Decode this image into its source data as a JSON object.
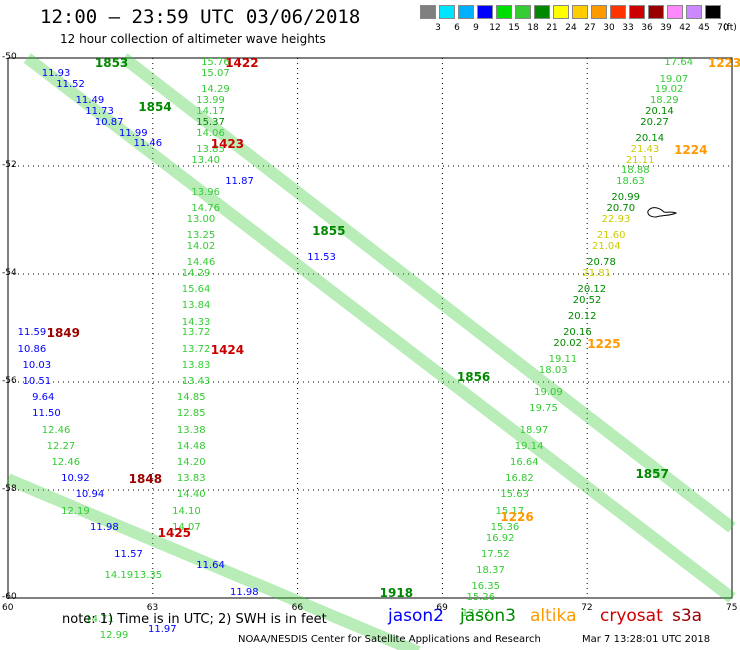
{
  "title": "12:00 – 23:59 UTC 03/06/2018",
  "subtitle": "12 hour collection of altimeter wave heights",
  "scale": {
    "labels": [
      "3",
      "6",
      "9",
      "12",
      "15",
      "18",
      "21",
      "24",
      "27",
      "30",
      "33",
      "36",
      "39",
      "42",
      "45",
      "70"
    ],
    "unit": "(ft)",
    "colors": [
      "#808080",
      "#00e5ff",
      "#00b0ff",
      "#0000ff",
      "#00dd00",
      "#33cc33",
      "#008800",
      "#ffff00",
      "#ffcc00",
      "#ff9900",
      "#ff3300",
      "#cc0000",
      "#990000",
      "#ff88ff",
      "#cc88ff",
      "#000000"
    ]
  },
  "axes": {
    "lat_labels": [
      "-50",
      "-52",
      "-54",
      "-56",
      "-58",
      "-60"
    ],
    "lon_labels": [
      "60",
      "63",
      "66",
      "69",
      "72",
      "75"
    ]
  },
  "note": "note: 1) Time is in UTC; 2) SWH is in feet",
  "legend": [
    {
      "name": "jason2",
      "color": "#0000ff"
    },
    {
      "name": "jason3",
      "color": "#008800"
    },
    {
      "name": "altika",
      "color": "#ff9900"
    },
    {
      "name": "cryosat",
      "color": "#cc0000"
    },
    {
      "name": "s3a",
      "color": "#990000"
    }
  ],
  "credit": "NOAA/NESDIS Center for Satellite Applications and Research",
  "timestamp": "Mar  7 13:28:01 UTC 2018",
  "pass_labels": [
    {
      "text": "1853",
      "color": "#008800",
      "lon": 61.8,
      "lat": -50.1
    },
    {
      "text": "1422",
      "color": "#cc0000",
      "lon": 64.5,
      "lat": -50.1
    },
    {
      "text": "1223",
      "color": "#ff9900",
      "lon": 74.5,
      "lat": -50.1
    },
    {
      "text": "1854",
      "color": "#008800",
      "lon": 62.7,
      "lat": -50.9
    },
    {
      "text": "1423",
      "color": "#cc0000",
      "lon": 64.2,
      "lat": -51.6
    },
    {
      "text": "1224",
      "color": "#ff9900",
      "lon": 73.8,
      "lat": -51.7
    },
    {
      "text": "1855",
      "color": "#008800",
      "lon": 66.3,
      "lat": -53.2
    },
    {
      "text": "1849",
      "color": "#990000",
      "lon": 60.8,
      "lat": -55.1
    },
    {
      "text": "1424",
      "color": "#cc0000",
      "lon": 64.2,
      "lat": -55.4
    },
    {
      "text": "1225",
      "color": "#ff9900",
      "lon": 72.0,
      "lat": -55.3
    },
    {
      "text": "1856",
      "color": "#008800",
      "lon": 69.3,
      "lat": -55.9
    },
    {
      "text": "1848",
      "color": "#990000",
      "lon": 62.5,
      "lat": -57.8
    },
    {
      "text": "1857",
      "color": "#008800",
      "lon": 73.0,
      "lat": -57.7
    },
    {
      "text": "1226",
      "color": "#ff9900",
      "lon": 70.2,
      "lat": -58.5
    },
    {
      "text": "1425",
      "color": "#cc0000",
      "lon": 63.1,
      "lat": -58.8
    },
    {
      "text": "1918",
      "color": "#008800",
      "lon": 67.7,
      "lat": -59.9
    }
  ],
  "obs": [
    {
      "v": "17.64",
      "c": "#33cc33",
      "lon": 73.6,
      "lat": -50.1
    },
    {
      "v": "19.07",
      "c": "#33cc33",
      "lon": 73.5,
      "lat": -50.4
    },
    {
      "v": "19.02",
      "c": "#33cc33",
      "lon": 73.4,
      "lat": -50.6
    },
    {
      "v": "18.29",
      "c": "#33cc33",
      "lon": 73.3,
      "lat": -50.8
    },
    {
      "v": "20.14",
      "c": "#008800",
      "lon": 73.2,
      "lat": -51.0
    },
    {
      "v": "20.27",
      "c": "#008800",
      "lon": 73.1,
      "lat": -51.2
    },
    {
      "v": "20.14",
      "c": "#008800",
      "lon": 73.0,
      "lat": -51.5
    },
    {
      "v": "21.43",
      "c": "#cccc00",
      "lon": 72.9,
      "lat": -51.7
    },
    {
      "v": "21.11",
      "c": "#cccc00",
      "lon": 72.8,
      "lat": -51.9
    },
    {
      "v": "18.88",
      "c": "#33cc33",
      "lon": 72.7,
      "lat": -52.1
    },
    {
      "v": "18.63",
      "c": "#33cc33",
      "lon": 72.6,
      "lat": -52.3
    },
    {
      "v": "20.99",
      "c": "#008800",
      "lon": 72.5,
      "lat": -52.6
    },
    {
      "v": "20.70",
      "c": "#008800",
      "lon": 72.4,
      "lat": -52.8
    },
    {
      "v": "22.93",
      "c": "#cccc00",
      "lon": 72.3,
      "lat": -53.0
    },
    {
      "v": "21.60",
      "c": "#cccc00",
      "lon": 72.2,
      "lat": -53.3
    },
    {
      "v": "21.04",
      "c": "#cccc00",
      "lon": 72.1,
      "lat": -53.5
    },
    {
      "v": "20.78",
      "c": "#008800",
      "lon": 72.0,
      "lat": -53.8
    },
    {
      "v": "21.81",
      "c": "#cccc00",
      "lon": 71.9,
      "lat": -54.0
    },
    {
      "v": "20.12",
      "c": "#008800",
      "lon": 71.8,
      "lat": -54.3
    },
    {
      "v": "20.52",
      "c": "#008800",
      "lon": 71.7,
      "lat": -54.5
    },
    {
      "v": "20.12",
      "c": "#008800",
      "lon": 71.6,
      "lat": -54.8
    },
    {
      "v": "20.16",
      "c": "#008800",
      "lon": 71.5,
      "lat": -55.1
    },
    {
      "v": "20.02",
      "c": "#008800",
      "lon": 71.3,
      "lat": -55.3
    },
    {
      "v": "19.11",
      "c": "#33cc33",
      "lon": 71.2,
      "lat": -55.6
    },
    {
      "v": "18.03",
      "c": "#33cc33",
      "lon": 71.0,
      "lat": -55.8
    },
    {
      "v": "19.09",
      "c": "#33cc33",
      "lon": 70.9,
      "lat": -56.2
    },
    {
      "v": "19.75",
      "c": "#33cc33",
      "lon": 70.8,
      "lat": -56.5
    },
    {
      "v": "18.97",
      "c": "#33cc33",
      "lon": 70.6,
      "lat": -56.9
    },
    {
      "v": "19.14",
      "c": "#33cc33",
      "lon": 70.5,
      "lat": -57.2
    },
    {
      "v": "16.64",
      "c": "#33cc33",
      "lon": 70.4,
      "lat": -57.5
    },
    {
      "v": "16.82",
      "c": "#33cc33",
      "lon": 70.3,
      "lat": -57.8
    },
    {
      "v": "15.63",
      "c": "#33cc33",
      "lon": 70.2,
      "lat": -58.1
    },
    {
      "v": "15.17",
      "c": "#33cc33",
      "lon": 70.1,
      "lat": -58.4
    },
    {
      "v": "15.36",
      "c": "#33cc33",
      "lon": 70.0,
      "lat": -58.7
    },
    {
      "v": "16.92",
      "c": "#33cc33",
      "lon": 69.9,
      "lat": -58.9
    },
    {
      "v": "17.52",
      "c": "#33cc33",
      "lon": 69.8,
      "lat": -59.2
    },
    {
      "v": "18.37",
      "c": "#33cc33",
      "lon": 69.7,
      "lat": -59.5
    },
    {
      "v": "16.35",
      "c": "#33cc33",
      "lon": 69.6,
      "lat": -59.8
    },
    {
      "v": "15.26",
      "c": "#33cc33",
      "lon": 69.5,
      "lat": -60.0
    },
    {
      "v": "12.52",
      "c": "#33cc33",
      "lon": 69.4,
      "lat": -60.3
    },
    {
      "v": "15.76",
      "c": "#33cc33",
      "lon": 64.0,
      "lat": -50.1
    },
    {
      "v": "15.07",
      "c": "#33cc33",
      "lon": 64.0,
      "lat": -50.3
    },
    {
      "v": "14.29",
      "c": "#33cc33",
      "lon": 64.0,
      "lat": -50.6
    },
    {
      "v": "13.99",
      "c": "#33cc33",
      "lon": 63.9,
      "lat": -50.8
    },
    {
      "v": "14.17",
      "c": "#33cc33",
      "lon": 63.9,
      "lat": -51.0
    },
    {
      "v": "15.37",
      "c": "#008800",
      "lon": 63.9,
      "lat": -51.2
    },
    {
      "v": "14.06",
      "c": "#33cc33",
      "lon": 63.9,
      "lat": -51.4
    },
    {
      "v": "13.85",
      "c": "#33cc33",
      "lon": 63.9,
      "lat": -51.7
    },
    {
      "v": "13.40",
      "c": "#33cc33",
      "lon": 63.8,
      "lat": -51.9
    },
    {
      "v": "13.96",
      "c": "#33cc33",
      "lon": 63.8,
      "lat": -52.5
    },
    {
      "v": "14.76",
      "c": "#33cc33",
      "lon": 63.8,
      "lat": -52.8
    },
    {
      "v": "13.00",
      "c": "#33cc33",
      "lon": 63.7,
      "lat": -53.0
    },
    {
      "v": "13.25",
      "c": "#33cc33",
      "lon": 63.7,
      "lat": -53.3
    },
    {
      "v": "14.02",
      "c": "#33cc33",
      "lon": 63.7,
      "lat": -53.5
    },
    {
      "v": "14.46",
      "c": "#33cc33",
      "lon": 63.7,
      "lat": -53.8
    },
    {
      "v": "14.29",
      "c": "#33cc33",
      "lon": 63.6,
      "lat": -54.0
    },
    {
      "v": "15.64",
      "c": "#33cc33",
      "lon": 63.6,
      "lat": -54.3
    },
    {
      "v": "13.84",
      "c": "#33cc33",
      "lon": 63.6,
      "lat": -54.6
    },
    {
      "v": "14.33",
      "c": "#33cc33",
      "lon": 63.6,
      "lat": -54.9
    },
    {
      "v": "13.72",
      "c": "#33cc33",
      "lon": 63.6,
      "lat": -55.1
    },
    {
      "v": "13.72",
      "c": "#33cc33",
      "lon": 63.6,
      "lat": -55.4
    },
    {
      "v": "13.83",
      "c": "#33cc33",
      "lon": 63.6,
      "lat": -55.7
    },
    {
      "v": "13.43",
      "c": "#33cc33",
      "lon": 63.6,
      "lat": -56.0
    },
    {
      "v": "14.85",
      "c": "#33cc33",
      "lon": 63.5,
      "lat": -56.3
    },
    {
      "v": "12.85",
      "c": "#33cc33",
      "lon": 63.5,
      "lat": -56.6
    },
    {
      "v": "13.38",
      "c": "#33cc33",
      "lon": 63.5,
      "lat": -56.9
    },
    {
      "v": "14.48",
      "c": "#33cc33",
      "lon": 63.5,
      "lat": -57.2
    },
    {
      "v": "14.20",
      "c": "#33cc33",
      "lon": 63.5,
      "lat": -57.5
    },
    {
      "v": "13.83",
      "c": "#33cc33",
      "lon": 63.5,
      "lat": -57.8
    },
    {
      "v": "14.40",
      "c": "#33cc33",
      "lon": 63.5,
      "lat": -58.1
    },
    {
      "v": "14.10",
      "c": "#33cc33",
      "lon": 63.4,
      "lat": -58.4
    },
    {
      "v": "14.07",
      "c": "#33cc33",
      "lon": 63.4,
      "lat": -58.7
    },
    {
      "v": "11.93",
      "c": "#0000ff",
      "lon": 60.7,
      "lat": -50.3
    },
    {
      "v": "11.52",
      "c": "#0000ff",
      "lon": 61.0,
      "lat": -50.5
    },
    {
      "v": "11.49",
      "c": "#0000ff",
      "lon": 61.4,
      "lat": -50.8
    },
    {
      "v": "11.73",
      "c": "#0000ff",
      "lon": 61.6,
      "lat": -51.0
    },
    {
      "v": "10.87",
      "c": "#0000ff",
      "lon": 61.8,
      "lat": -51.2
    },
    {
      "v": "11.99",
      "c": "#0000ff",
      "lon": 62.3,
      "lat": -51.4
    },
    {
      "v": "11.46",
      "c": "#0000ff",
      "lon": 62.6,
      "lat": -51.6
    },
    {
      "v": "11.87",
      "c": "#0000ff",
      "lon": 64.5,
      "lat": -52.3
    },
    {
      "v": "11.53",
      "c": "#0000ff",
      "lon": 66.2,
      "lat": -53.7
    },
    {
      "v": "11.59",
      "c": "#0000ff",
      "lon": 60.2,
      "lat": -55.1
    },
    {
      "v": "10.86",
      "c": "#0000ff",
      "lon": 60.2,
      "lat": -55.4
    },
    {
      "v": "10.03",
      "c": "#0000ff",
      "lon": 60.3,
      "lat": -55.7
    },
    {
      "v": "10.51",
      "c": "#0000ff",
      "lon": 60.3,
      "lat": -56.0
    },
    {
      "v": "9.64",
      "c": "#0000ff",
      "lon": 60.5,
      "lat": -56.3
    },
    {
      "v": "11.50",
      "c": "#0000ff",
      "lon": 60.5,
      "lat": -56.6
    },
    {
      "v": "12.46",
      "c": "#33cc33",
      "lon": 60.7,
      "lat": -56.9
    },
    {
      "v": "12.27",
      "c": "#33cc33",
      "lon": 60.8,
      "lat": -57.2
    },
    {
      "v": "12.46",
      "c": "#33cc33",
      "lon": 60.9,
      "lat": -57.5
    },
    {
      "v": "10.92",
      "c": "#0000ff",
      "lon": 61.1,
      "lat": -57.8
    },
    {
      "v": "10.94",
      "c": "#0000ff",
      "lon": 61.4,
      "lat": -58.1
    },
    {
      "v": "12.19",
      "c": "#33cc33",
      "lon": 61.1,
      "lat": -58.4
    },
    {
      "v": "11.98",
      "c": "#0000ff",
      "lon": 61.7,
      "lat": -58.7
    },
    {
      "v": "11.57",
      "c": "#0000ff",
      "lon": 62.2,
      "lat": -59.2
    },
    {
      "v": "11.64",
      "c": "#0000ff",
      "lon": 63.9,
      "lat": -59.4
    },
    {
      "v": "11.98",
      "c": "#0000ff",
      "lon": 64.6,
      "lat": -59.9
    },
    {
      "v": "14.19",
      "c": "#33cc33",
      "lon": 62.0,
      "lat": -59.6
    },
    {
      "v": "13.35",
      "c": "#33cc33",
      "lon": 62.6,
      "lat": -59.6
    },
    {
      "v": "14.71",
      "c": "#33cc33",
      "lon": 61.6,
      "lat": -60.4
    },
    {
      "v": "12.99",
      "c": "#33cc33",
      "lon": 61.9,
      "lat": -60.7
    },
    {
      "v": "11.97",
      "c": "#0000ff",
      "lon": 62.9,
      "lat": -60.6
    }
  ],
  "diag_tracks": [
    {
      "c": "#33cc33",
      "from": [
        60.4,
        -50.0
      ],
      "to": [
        75.0,
        -60.0
      ]
    },
    {
      "c": "#33cc33",
      "from": [
        62.4,
        -50.0
      ],
      "to": [
        75.0,
        -58.7
      ]
    },
    {
      "c": "#33cc33",
      "from": [
        60.0,
        -57.8
      ],
      "to": [
        68.5,
        -61.0
      ]
    }
  ]
}
